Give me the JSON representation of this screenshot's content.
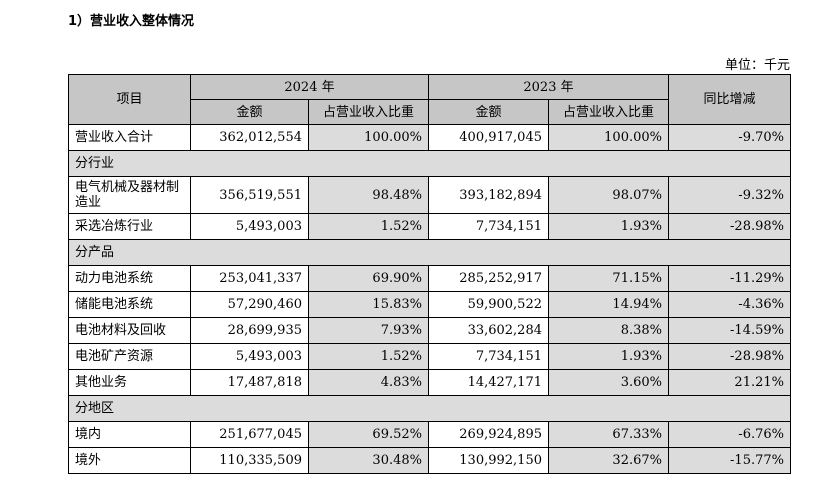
{
  "heading": "1）营业收入整体情况",
  "unit": "单位：千元",
  "table": {
    "header": {
      "item": "项目",
      "year_2024": "2024 年",
      "year_2023": "2023 年",
      "yoy": "同比增减",
      "amount_2024": "金额",
      "ratio_2024": "占营业收入比重",
      "amount_2023": "金额",
      "ratio_2023": "占营业收入比重"
    },
    "rows": {
      "total": {
        "label": "营业收入合计",
        "a24": "362,012,554",
        "r24": "100.00%",
        "a23": "400,917,045",
        "r23": "100.00%",
        "yoy": "-9.70%"
      },
      "sec_industry": "分行业",
      "electrical": {
        "label": "电气机械及器材制造业",
        "a24": "356,519,551",
        "r24": "98.48%",
        "a23": "393,182,894",
        "r23": "98.07%",
        "yoy": "-9.32%"
      },
      "mining": {
        "label": "采选冶炼行业",
        "a24": "5,493,003",
        "r24": "1.52%",
        "a23": "7,734,151",
        "r23": "1.93%",
        "yoy": "-28.98%"
      },
      "sec_product": "分产品",
      "power": {
        "label": "动力电池系统",
        "a24": "253,041,337",
        "r24": "69.90%",
        "a23": "285,252,917",
        "r23": "71.15%",
        "yoy": "-11.29%"
      },
      "storage": {
        "label": "储能电池系统",
        "a24": "57,290,460",
        "r24": "15.83%",
        "a23": "59,900,522",
        "r23": "14.94%",
        "yoy": "-4.36%"
      },
      "materials": {
        "label": "电池材料及回收",
        "a24": "28,699,935",
        "r24": "7.93%",
        "a23": "33,602,284",
        "r23": "8.38%",
        "yoy": "-14.59%"
      },
      "minerals": {
        "label": "电池矿产资源",
        "a24": "5,493,003",
        "r24": "1.52%",
        "a23": "7,734,151",
        "r23": "1.93%",
        "yoy": "-28.98%"
      },
      "other": {
        "label": "其他业务",
        "a24": "17,487,818",
        "r24": "4.83%",
        "a23": "14,427,171",
        "r23": "3.60%",
        "yoy": "21.21%"
      },
      "sec_region": "分地区",
      "domestic": {
        "label": "境内",
        "a24": "251,677,045",
        "r24": "69.52%",
        "a23": "269,924,895",
        "r23": "67.33%",
        "yoy": "-6.76%"
      },
      "overseas": {
        "label": "境外",
        "a24": "110,335,509",
        "r24": "30.48%",
        "a23": "130,992,150",
        "r23": "32.67%",
        "yoy": "-15.77%"
      }
    }
  }
}
